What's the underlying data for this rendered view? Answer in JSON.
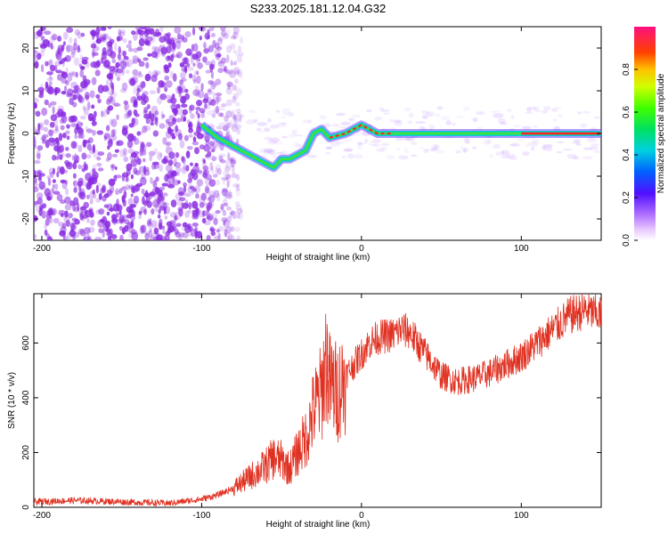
{
  "title": "S233.2025.181.12.04.G32",
  "colors": {
    "scatter": "#8a2be2",
    "snr_line": "#e03020",
    "axis": "#000000"
  },
  "chart_data": [
    {
      "type": "heatmap",
      "xlabel": "Height of straight line (km)",
      "ylabel": "Frequency (Hz)",
      "xlim": [
        -205,
        150
      ],
      "ylim": [
        -25,
        25
      ],
      "xticks": [
        -200,
        -100,
        0,
        100
      ],
      "yticks": [
        -20,
        -10,
        0,
        10,
        20
      ],
      "colorbar": {
        "label": "Normalized spectral amplitude",
        "range": [
          0,
          1
        ],
        "ticks": [
          0.0,
          0.2,
          0.4,
          0.6,
          0.8
        ]
      },
      "ridge": {
        "x": [
          -100,
          -90,
          -80,
          -70,
          -60,
          -55,
          -50,
          -45,
          -40,
          -35,
          -30,
          -25,
          -20,
          -10,
          0,
          10,
          20,
          40,
          60,
          80,
          100,
          120,
          150
        ],
        "y": [
          2,
          -1,
          -3,
          -5,
          -7,
          -8,
          -6,
          -6,
          -5,
          -4,
          0,
          1,
          -1,
          0,
          2,
          0,
          0,
          0,
          0,
          0,
          0,
          0,
          0
        ]
      }
    },
    {
      "type": "line",
      "xlabel": "Height of straight line (km)",
      "ylabel": "SNR (10 * v/v)",
      "xlim": [
        -205,
        150
      ],
      "ylim": [
        0,
        780
      ],
      "xticks": [
        -200,
        -100,
        0,
        100
      ],
      "yticks": [
        0,
        200,
        400,
        600
      ],
      "series": [
        {
          "x": [
            -205,
            -180,
            -160,
            -140,
            -120,
            -100,
            -90,
            -80,
            -70,
            -60,
            -55,
            -50,
            -45,
            -40,
            -35,
            -30,
            -25,
            -22,
            -20,
            -15,
            -10,
            -5,
            0,
            5,
            10,
            20,
            25,
            30,
            40,
            50,
            60,
            70,
            80,
            90,
            100,
            110,
            120,
            130,
            140,
            150
          ],
          "y": [
            20,
            25,
            22,
            18,
            15,
            30,
            45,
            70,
            110,
            150,
            180,
            170,
            140,
            200,
            250,
            350,
            420,
            550,
            450,
            420,
            480,
            520,
            560,
            600,
            620,
            630,
            650,
            640,
            560,
            480,
            460,
            470,
            490,
            520,
            550,
            600,
            650,
            700,
            720,
            700
          ]
        }
      ]
    }
  ]
}
